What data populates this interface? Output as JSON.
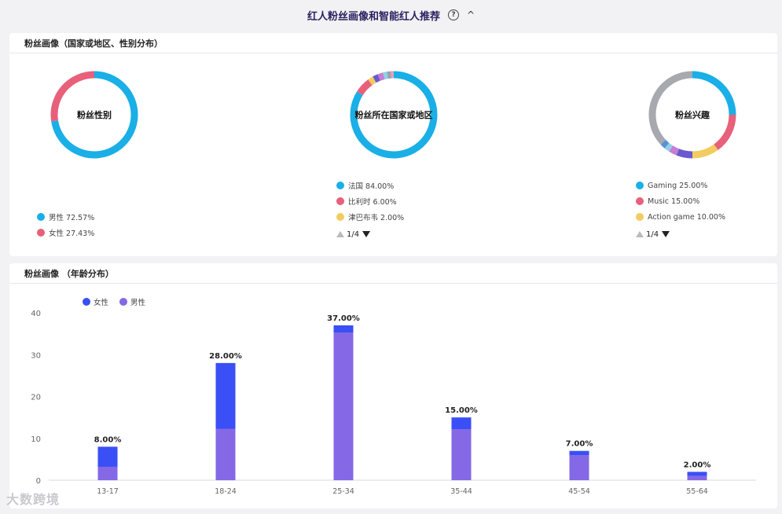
{
  "header": {
    "title": "红人粉丝画像和智能红人推荐",
    "help_icon": "?",
    "collapse_icon": "^"
  },
  "section1": {
    "title": "粉丝画像（国家或地区、性别分布）",
    "gender": {
      "center_label": "粉丝性别",
      "items": [
        {
          "label": "男性 72.57%",
          "value": 72.57,
          "color": "#1aafe6"
        },
        {
          "label": "女性 27.43%",
          "value": 27.43,
          "color": "#e8607a"
        }
      ]
    },
    "country": {
      "center_label": "粉丝所在国家或地区",
      "items": [
        {
          "label": "法国 84.00%",
          "value": 84.0,
          "color": "#1aafe6"
        },
        {
          "label": "比利时 6.00%",
          "value": 6.0,
          "color": "#e8607a"
        },
        {
          "label": "津巴布韦 2.00%",
          "value": 2.0,
          "color": "#f2cc60"
        }
      ],
      "extra_segments": [
        {
          "value": 2.0,
          "color": "#6a5acd"
        },
        {
          "value": 2.0,
          "color": "#c77dd6"
        },
        {
          "value": 1.5,
          "color": "#8fd0e8"
        },
        {
          "value": 1.5,
          "color": "#9aa3ad"
        },
        {
          "value": 1.0,
          "color": "#e6a3c0"
        }
      ],
      "pager": "1/4"
    },
    "interest": {
      "center_label": "粉丝兴趣",
      "items": [
        {
          "label": "Gaming 25.00%",
          "value": 25.0,
          "color": "#1aafe6"
        },
        {
          "label": "Music 15.00%",
          "value": 15.0,
          "color": "#e8607a"
        },
        {
          "label": "Action game 10.00%",
          "value": 10.0,
          "color": "#f2cc60"
        }
      ],
      "extra_segments": [
        {
          "value": 6.0,
          "color": "#6a5acd"
        },
        {
          "value": 3.0,
          "color": "#c77dd6"
        },
        {
          "value": 2.0,
          "color": "#8fd0e8"
        },
        {
          "value": 2.0,
          "color": "#5a8fd8"
        },
        {
          "value": 37.0,
          "color": "#a6a9ae"
        }
      ],
      "pager": "1/4"
    }
  },
  "section2": {
    "title": "粉丝画像 （年龄分布）",
    "legend": [
      {
        "label": "女性",
        "color": "#3a4ff5"
      },
      {
        "label": "男性",
        "color": "#8468e6"
      }
    ]
  },
  "chart_data": {
    "type": "bar",
    "stacked": true,
    "categories": [
      "13-17",
      "18-24",
      "25-34",
      "35-44",
      "45-54",
      "55-64"
    ],
    "series": [
      {
        "name": "男性",
        "values": [
          3.2,
          12.3,
          35.3,
          12.2,
          6.0,
          1.0
        ],
        "color": "#8468e6"
      },
      {
        "name": "女性",
        "values": [
          4.8,
          15.7,
          1.7,
          2.8,
          1.0,
          1.0
        ],
        "color": "#3a4ff5"
      }
    ],
    "totals_labels": [
      "8.00%",
      "28.00%",
      "37.00%",
      "15.00%",
      "7.00%",
      "2.00%"
    ],
    "totals": [
      8,
      28,
      37,
      15,
      7,
      2
    ],
    "yticks": [
      "0",
      "10",
      "20",
      "30",
      "40"
    ],
    "ylim": [
      0,
      40
    ],
    "grid": false
  },
  "watermark": "大数跨境"
}
